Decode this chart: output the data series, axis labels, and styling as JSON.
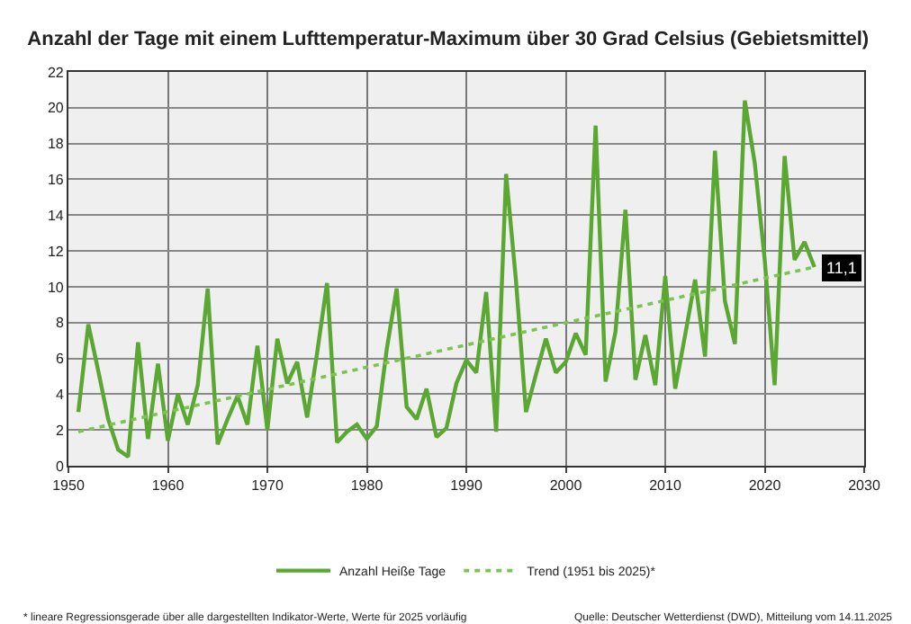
{
  "chart_data": {
    "type": "line",
    "title": "Anzahl der Tage mit einem Lufttemperatur-Maximum über 30 Grad Celsius (Gebietsmittel)",
    "x": [
      1951,
      1952,
      1953,
      1954,
      1955,
      1956,
      1957,
      1958,
      1959,
      1960,
      1961,
      1962,
      1963,
      1964,
      1965,
      1966,
      1967,
      1968,
      1969,
      1970,
      1971,
      1972,
      1973,
      1974,
      1975,
      1976,
      1977,
      1978,
      1979,
      1980,
      1981,
      1982,
      1983,
      1984,
      1985,
      1986,
      1987,
      1988,
      1989,
      1990,
      1991,
      1992,
      1993,
      1994,
      1995,
      1996,
      1997,
      1998,
      1999,
      2000,
      2001,
      2002,
      2003,
      2004,
      2005,
      2006,
      2007,
      2008,
      2009,
      2010,
      2011,
      2012,
      2013,
      2014,
      2015,
      2016,
      2017,
      2018,
      2019,
      2020,
      2021,
      2022,
      2023,
      2024,
      2025
    ],
    "series": [
      {
        "name": "Anzahl Heiße Tage",
        "color": "#5aa832",
        "values": [
          3.0,
          7.9,
          5.3,
          2.6,
          0.9,
          0.5,
          6.9,
          1.5,
          5.7,
          1.4,
          4.0,
          2.3,
          4.5,
          9.9,
          1.2,
          2.6,
          3.9,
          2.3,
          6.7,
          2.0,
          7.1,
          4.6,
          5.8,
          2.7,
          6.3,
          10.2,
          1.3,
          1.9,
          2.3,
          1.5,
          2.2,
          6.5,
          9.9,
          3.3,
          2.6,
          4.3,
          1.6,
          2.1,
          4.6,
          5.9,
          5.2,
          9.7,
          1.9,
          16.3,
          10.3,
          3.0,
          5.1,
          7.1,
          5.2,
          5.8,
          7.4,
          6.2,
          19.0,
          4.7,
          7.5,
          14.3,
          4.8,
          7.3,
          4.5,
          10.6,
          4.3,
          7.3,
          10.4,
          6.1,
          17.6,
          9.2,
          6.8,
          20.4,
          16.9,
          11.5,
          4.5,
          17.3,
          11.5,
          12.5,
          11.1
        ]
      },
      {
        "name": "Trend (1951 bis 2025)*",
        "type": "line",
        "color": "#7cc450",
        "line_style": "dotted",
        "x": [
          1951,
          2025
        ],
        "values": [
          1.9,
          11.1
        ]
      }
    ],
    "xlim": [
      1950,
      2030
    ],
    "xticks": [
      1950,
      1960,
      1970,
      1980,
      1990,
      2000,
      2010,
      2020,
      2030
    ],
    "ylim": [
      0,
      22
    ],
    "yticks": [
      0,
      2,
      4,
      6,
      8,
      10,
      12,
      14,
      16,
      18,
      20,
      22
    ],
    "grid": true,
    "legend": "bottom",
    "annotations": [
      {
        "text": "11,1",
        "x": 2025,
        "y": 11.1
      },
      "* lineare Regressionsgerade über alle dargestellten Indikator-Werte, Werte für 2025 vorläufig",
      "Quelle: Deutscher Wetterdienst (DWD), Mitteilung vom 14.11.2025"
    ]
  }
}
